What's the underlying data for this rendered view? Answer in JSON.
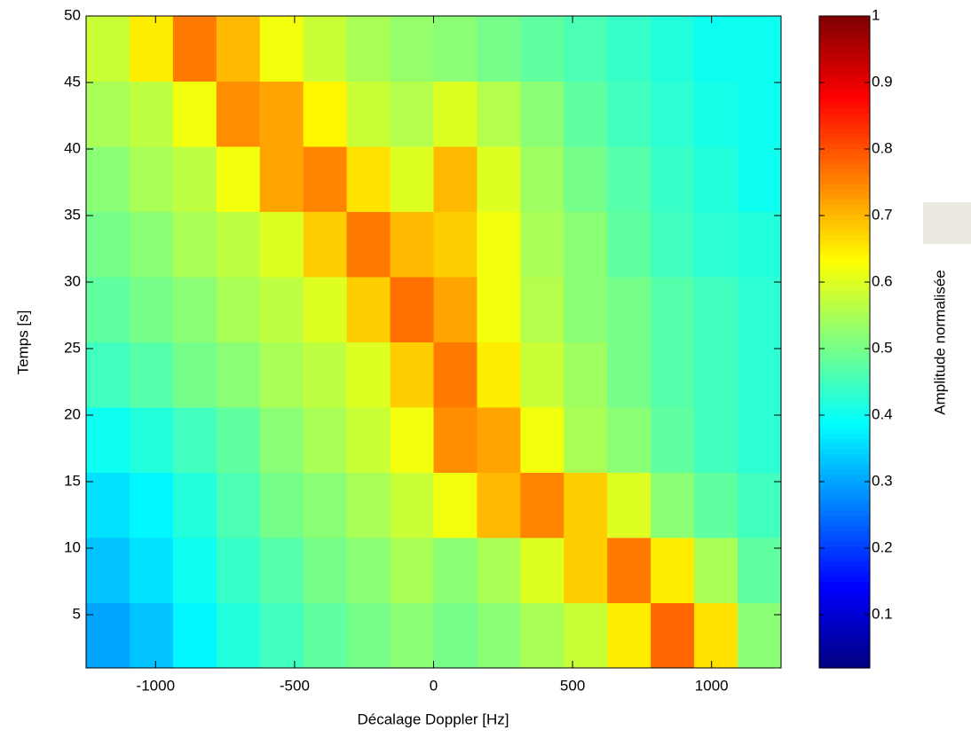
{
  "chart_data": {
    "type": "heatmap",
    "xlabel": "Décalage Doppler [Hz]",
    "ylabel": "Temps [s]",
    "colorbar_label": "Amplitude normalisée",
    "colormap": "jet",
    "xbins": [
      -1250,
      -1093.75,
      -937.5,
      -781.25,
      -625,
      -468.75,
      -312.5,
      -156.25,
      0,
      156.25,
      312.5,
      468.75,
      625,
      781.25,
      937.5,
      1093.75,
      1250
    ],
    "ybins": [
      1,
      5.9,
      10.8,
      15.7,
      20.6,
      25.5,
      30.4,
      35.3,
      40.2,
      45.1,
      50
    ],
    "values": [
      [
        0.3,
        0.33,
        0.38,
        0.42,
        0.45,
        0.48,
        0.5,
        0.52,
        0.5,
        0.52,
        0.55,
        0.58,
        0.65,
        0.78,
        0.66,
        0.52
      ],
      [
        0.33,
        0.36,
        0.4,
        0.44,
        0.47,
        0.5,
        0.52,
        0.55,
        0.52,
        0.55,
        0.6,
        0.68,
        0.76,
        0.65,
        0.55,
        0.48
      ],
      [
        0.36,
        0.38,
        0.42,
        0.46,
        0.5,
        0.52,
        0.55,
        0.58,
        0.62,
        0.7,
        0.75,
        0.68,
        0.6,
        0.52,
        0.48,
        0.45
      ],
      [
        0.4,
        0.42,
        0.45,
        0.48,
        0.52,
        0.55,
        0.58,
        0.62,
        0.74,
        0.72,
        0.62,
        0.55,
        0.52,
        0.48,
        0.45,
        0.43
      ],
      [
        0.45,
        0.47,
        0.5,
        0.52,
        0.55,
        0.57,
        0.6,
        0.68,
        0.76,
        0.65,
        0.58,
        0.54,
        0.5,
        0.47,
        0.45,
        0.43
      ],
      [
        0.48,
        0.5,
        0.52,
        0.55,
        0.57,
        0.6,
        0.68,
        0.77,
        0.72,
        0.62,
        0.56,
        0.52,
        0.5,
        0.47,
        0.45,
        0.43
      ],
      [
        0.5,
        0.52,
        0.55,
        0.57,
        0.6,
        0.68,
        0.76,
        0.7,
        0.68,
        0.62,
        0.55,
        0.52,
        0.48,
        0.45,
        0.43,
        0.42
      ],
      [
        0.52,
        0.55,
        0.57,
        0.62,
        0.72,
        0.75,
        0.66,
        0.6,
        0.7,
        0.6,
        0.54,
        0.5,
        0.47,
        0.44,
        0.42,
        0.4
      ],
      [
        0.55,
        0.57,
        0.62,
        0.74,
        0.72,
        0.64,
        0.58,
        0.56,
        0.6,
        0.56,
        0.52,
        0.48,
        0.45,
        0.43,
        0.41,
        0.4
      ],
      [
        0.58,
        0.65,
        0.76,
        0.7,
        0.62,
        0.58,
        0.55,
        0.53,
        0.52,
        0.5,
        0.48,
        0.46,
        0.44,
        0.42,
        0.4,
        0.4
      ]
    ],
    "xlim": [
      -1250,
      1250
    ],
    "ylim": [
      1,
      50
    ],
    "clim": [
      0.02,
      1
    ],
    "xticks": [
      -1000,
      -500,
      0,
      500,
      1000
    ],
    "yticks": [
      5,
      10,
      15,
      20,
      25,
      30,
      35,
      40,
      45,
      50
    ],
    "cticks": [
      0.1,
      0.2,
      0.3,
      0.4,
      0.5,
      0.6,
      0.7,
      0.8,
      0.9,
      1
    ]
  }
}
